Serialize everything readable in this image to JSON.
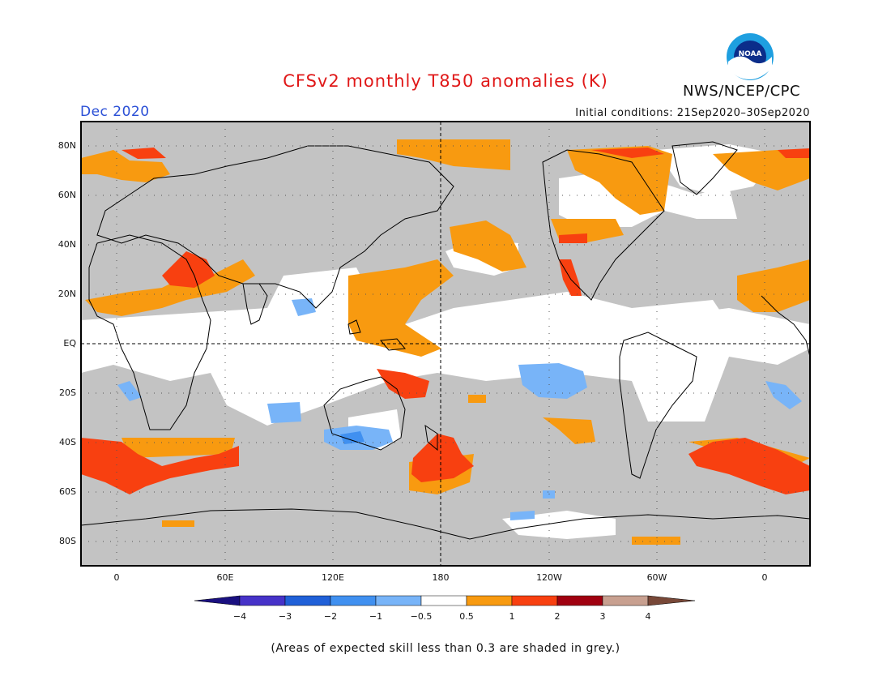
{
  "header": {
    "title": "CFSv2 monthly T850 anomalies (K)",
    "period": "Dec 2020",
    "initial_conditions": "Initial conditions: 21Sep2020–30Sep2020",
    "agency": "NWS/NCEP/CPC",
    "logo_text": "NOAA"
  },
  "map": {
    "latitude_labels": [
      "80N",
      "60N",
      "40N",
      "20N",
      "EQ",
      "20S",
      "40S",
      "60S",
      "80S"
    ],
    "longitude_labels": [
      "0",
      "60E",
      "120E",
      "180",
      "120W",
      "60W",
      "0"
    ],
    "skill_mask_color": "#c3c3c3",
    "land_outline_color": "#000000"
  },
  "colorbar": {
    "tick_labels": [
      "−4",
      "−3",
      "−2",
      "−1",
      "−0.5",
      "0.5",
      "1",
      "2",
      "3",
      "4"
    ],
    "colors": [
      "#1a1080",
      "#4632c8",
      "#2060d8",
      "#4090f0",
      "#78b4f8",
      "#ffffff",
      "#f89a10",
      "#f84010",
      "#a00010",
      "#c8a090",
      "#784838"
    ]
  },
  "footnote": "(Areas of expected skill less than 0.3 are shaded in grey.)"
}
